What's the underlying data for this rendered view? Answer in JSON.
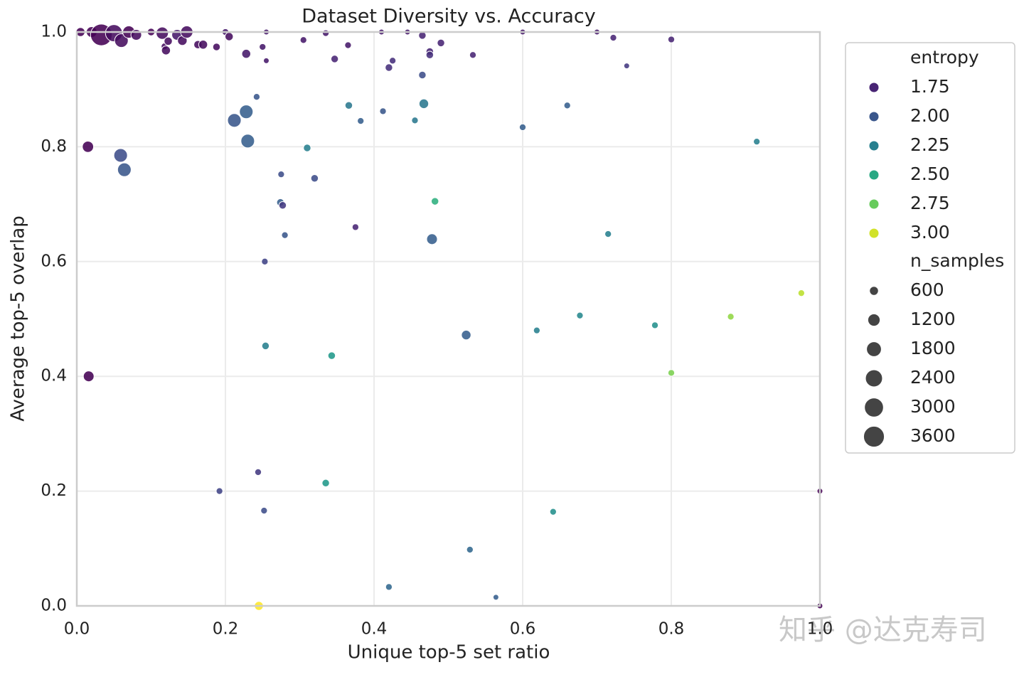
{
  "chart_data": {
    "type": "scatter",
    "title": "Dataset Diversity vs. Accuracy",
    "x_label": "Unique top-5 set ratio",
    "y_label": "Average top-5 overlap",
    "palette": "viridis",
    "grid": true,
    "legend_position": "outside-right",
    "xlim": [
      0,
      1
    ],
    "ylim": [
      0,
      1
    ],
    "xticks": [
      {
        "value": 0,
        "label": "0.0"
      },
      0.2,
      0.4,
      0.6,
      0.8,
      {
        "value": 1,
        "label": "1.0"
      }
    ],
    "yticks": [
      {
        "value": 0,
        "label": "0.0"
      },
      0.2,
      0.4,
      0.6,
      0.8,
      {
        "value": 1,
        "label": "1.0"
      }
    ],
    "hue_title": "entropy",
    "hue_levels": [
      1.75,
      {
        "value": 2,
        "label": "2.00"
      },
      2.25,
      {
        "value": 2.5,
        "label": "2.50"
      },
      2.75,
      {
        "value": 3,
        "label": "3.00"
      }
    ],
    "size_title": "n_samples",
    "size_levels": [
      600,
      1200,
      1800,
      2400,
      3000,
      3600
    ],
    "watermark": "知乎 @达克寿司",
    "x": [
      0.005,
      0.02,
      0.033,
      0.05,
      0.06,
      0.07,
      0.08,
      0.1,
      0.115,
      0.118,
      0.12,
      0.123,
      0.135,
      0.142,
      0.148,
      0.163,
      0.17,
      0.188,
      0.2,
      0.205,
      0.228,
      0.25,
      0.255,
      0.255,
      0.305,
      0.335,
      0.347,
      0.365,
      0.41,
      0.42,
      0.425,
      0.445,
      0.465,
      0.475,
      0.475,
      0.49,
      0.533,
      0.6,
      0.7,
      0.722,
      0.74,
      0.8,
      0.242,
      0.212,
      0.228,
      0.23,
      0.366,
      0.382,
      0.412,
      0.455,
      0.465,
      0.467,
      0.6,
      0.66,
      0.915,
      0.015,
      0.059,
      0.064,
      0.31,
      0.275,
      0.32,
      0.274,
      0.277,
      0.482,
      0.375,
      0.28,
      0.478,
      0.715,
      0.253,
      0.975,
      0.677,
      0.88,
      0.524,
      0.619,
      0.778,
      0.254,
      0.343,
      0.8,
      0.016,
      0.244,
      0.192,
      0.335,
      1.0,
      0.252,
      0.641,
      0.529,
      0.42,
      0.564,
      0.245,
      1.0
    ],
    "y": [
      1.0,
      1.0,
      0.995,
      0.998,
      0.985,
      1.0,
      0.995,
      1.0,
      0.998,
      0.975,
      0.968,
      0.984,
      0.995,
      0.985,
      1.0,
      0.978,
      0.978,
      0.974,
      1.0,
      0.992,
      0.962,
      0.974,
      1.0,
      0.95,
      0.986,
      0.998,
      0.953,
      0.977,
      1.0,
      0.938,
      0.95,
      1.0,
      0.994,
      0.966,
      0.96,
      0.981,
      0.96,
      1.0,
      1.0,
      0.99,
      0.941,
      0.987,
      0.887,
      0.846,
      0.861,
      0.81,
      0.872,
      0.845,
      0.862,
      0.846,
      0.925,
      0.875,
      0.834,
      0.872,
      0.809,
      0.8,
      0.785,
      0.76,
      0.798,
      0.752,
      0.745,
      0.703,
      0.698,
      0.705,
      0.66,
      0.646,
      0.639,
      0.648,
      0.6,
      0.545,
      0.506,
      0.504,
      0.472,
      0.48,
      0.489,
      0.453,
      0.436,
      0.406,
      0.4,
      0.233,
      0.2,
      0.214,
      0.2,
      0.166,
      0.164,
      0.098,
      0.033,
      0.015,
      0.0,
      0.0
    ],
    "entropy": [
      1.6,
      1.6,
      1.6,
      1.65,
      1.65,
      1.6,
      1.65,
      1.6,
      1.65,
      1.65,
      1.65,
      1.65,
      1.7,
      1.65,
      1.65,
      1.65,
      1.65,
      1.65,
      1.7,
      1.65,
      1.7,
      1.7,
      1.7,
      1.7,
      1.7,
      1.7,
      1.75,
      1.7,
      1.7,
      1.8,
      1.8,
      1.7,
      1.75,
      1.75,
      1.8,
      1.75,
      1.75,
      1.7,
      1.7,
      1.75,
      1.85,
      1.75,
      2.0,
      2.0,
      2.05,
      2.05,
      2.2,
      2.05,
      2.0,
      2.2,
      1.95,
      2.2,
      2.05,
      2.05,
      2.25,
      1.6,
      1.95,
      2.0,
      2.25,
      1.95,
      1.95,
      2.05,
      1.85,
      2.55,
      1.75,
      2.0,
      2.05,
      2.25,
      1.9,
      2.95,
      2.3,
      2.85,
      2.05,
      2.25,
      2.35,
      2.25,
      2.4,
      2.8,
      1.6,
      1.85,
      1.9,
      2.4,
      1.6,
      1.95,
      2.35,
      2.1,
      2.1,
      2.05,
      3.1,
      1.6
    ],
    "n_samples": [
      600,
      900,
      3900,
      2400,
      1500,
      1200,
      900,
      400,
      1200,
      300,
      600,
      500,
      900,
      700,
      1200,
      500,
      600,
      400,
      300,
      500,
      600,
      300,
      200,
      200,
      300,
      300,
      400,
      300,
      200,
      400,
      300,
      200,
      400,
      400,
      400,
      400,
      300,
      200,
      200,
      300,
      200,
      300,
      300,
      1500,
      1500,
      1500,
      400,
      300,
      300,
      300,
      400,
      700,
      300,
      300,
      300,
      1000,
      1500,
      1500,
      400,
      300,
      400,
      400,
      400,
      400,
      300,
      300,
      900,
      300,
      300,
      300,
      300,
      300,
      700,
      300,
      300,
      400,
      400,
      300,
      900,
      300,
      300,
      400,
      200,
      300,
      300,
      300,
      300,
      200,
      600,
      200
    ]
  }
}
